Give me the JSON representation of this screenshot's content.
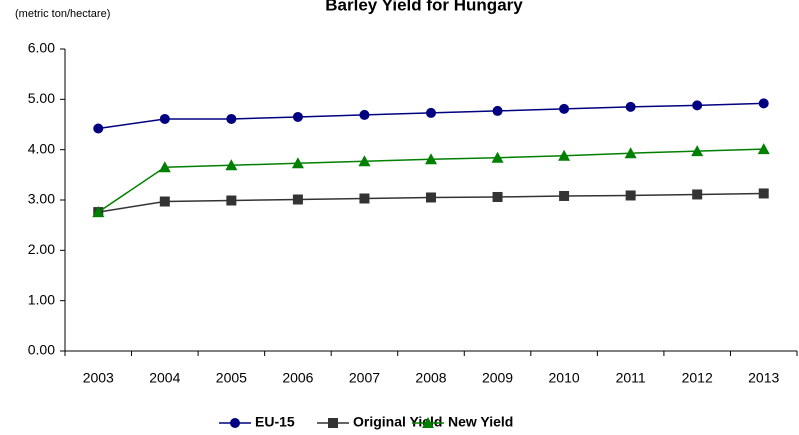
{
  "chart_data": {
    "type": "line",
    "title": "Barley Yield for Hungary",
    "y_label": "(metric ton/hectare)",
    "categories": [
      "2003",
      "2004",
      "2005",
      "2006",
      "2007",
      "2008",
      "2009",
      "2010",
      "2011",
      "2012",
      "2013"
    ],
    "series": [
      {
        "name": "EU-15",
        "color": "#000080",
        "marker": "circle",
        "values": [
          4.42,
          4.61,
          4.61,
          4.65,
          4.69,
          4.73,
          4.77,
          4.81,
          4.85,
          4.88,
          4.92
        ]
      },
      {
        "name": "Original Yield",
        "color": "#333333",
        "marker": "square",
        "values": [
          2.76,
          2.97,
          2.99,
          3.01,
          3.03,
          3.05,
          3.06,
          3.08,
          3.09,
          3.11,
          3.13
        ]
      },
      {
        "name": "New Yield",
        "color": "#008000",
        "marker": "triangle",
        "values": [
          2.76,
          3.65,
          3.69,
          3.73,
          3.77,
          3.81,
          3.84,
          3.88,
          3.93,
          3.97,
          4.01
        ]
      }
    ],
    "ylim": [
      0,
      6
    ],
    "yticks": [
      {
        "value": 0,
        "label": "0.00"
      },
      {
        "value": 1,
        "label": "1.00"
      },
      {
        "value": 2,
        "label": "2.00"
      },
      {
        "value": 3,
        "label": "3.00"
      },
      {
        "value": 4,
        "label": "4.00"
      },
      {
        "value": 5,
        "label": "5.00"
      },
      {
        "value": 6,
        "label": "6.00"
      }
    ],
    "grid": false,
    "legend": "bottom"
  }
}
